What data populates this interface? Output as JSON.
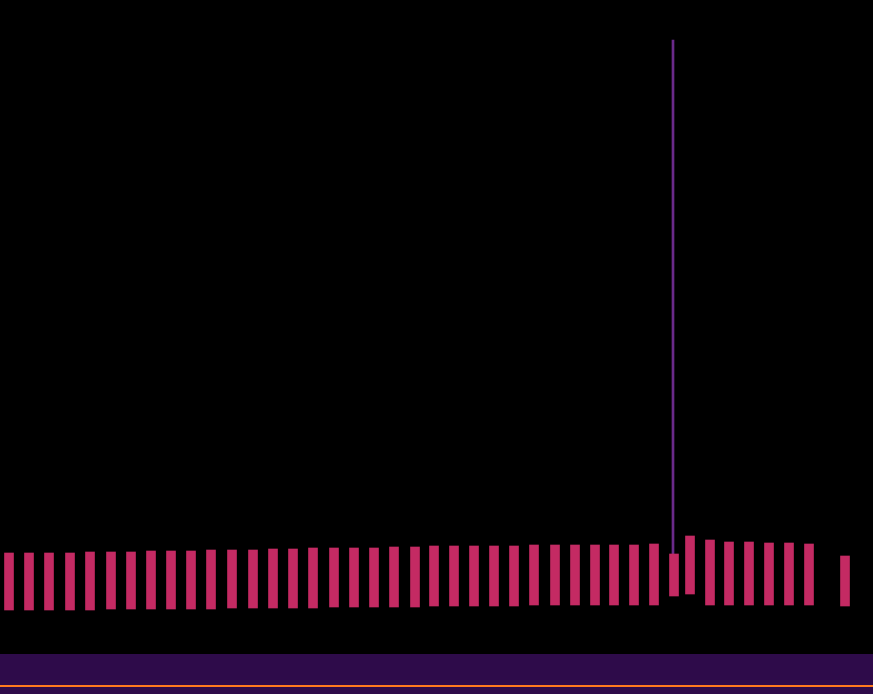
{
  "chart_data": {
    "type": "heatmap",
    "xlim": [
      0,
      873
    ],
    "ylim": [
      0,
      694
    ],
    "tick_labels": false,
    "grid": false,
    "series": [
      {
        "type": "area",
        "color": "#2e0b4a",
        "x": [
          0,
          873
        ],
        "values": [
          40,
          40
        ]
      },
      {
        "type": "line",
        "color": "#ff7a1e",
        "x": [
          0,
          873
        ],
        "values": [
          8,
          8
        ]
      },
      {
        "type": "bar",
        "color": "#c42a63",
        "x": [
          9,
          29,
          49,
          70,
          90,
          111,
          131,
          151,
          171,
          191,
          211,
          232,
          253,
          273,
          293,
          313,
          334,
          354,
          374,
          394,
          415,
          434,
          454,
          474,
          494,
          514,
          534,
          555,
          575,
          595,
          614,
          634,
          654,
          674,
          690,
          710,
          729,
          749,
          769,
          789,
          809,
          845
        ],
        "values": [
          [
            84,
            141
          ],
          [
            84,
            141
          ],
          [
            84,
            141
          ],
          [
            84,
            141
          ],
          [
            84,
            142
          ],
          [
            85,
            142
          ],
          [
            85,
            142
          ],
          [
            85,
            143
          ],
          [
            85,
            143
          ],
          [
            85,
            143
          ],
          [
            85,
            144
          ],
          [
            86,
            144
          ],
          [
            86,
            144
          ],
          [
            86,
            145
          ],
          [
            86,
            145
          ],
          [
            86,
            146
          ],
          [
            87,
            146
          ],
          [
            87,
            146
          ],
          [
            87,
            146
          ],
          [
            87,
            147
          ],
          [
            87,
            147
          ],
          [
            88,
            148
          ],
          [
            88,
            148
          ],
          [
            88,
            148
          ],
          [
            88,
            148
          ],
          [
            88,
            148
          ],
          [
            89,
            149
          ],
          [
            89,
            149
          ],
          [
            89,
            149
          ],
          [
            89,
            149
          ],
          [
            89,
            149
          ],
          [
            89,
            149
          ],
          [
            89,
            150
          ],
          [
            98,
            140
          ],
          [
            100,
            158
          ],
          [
            89,
            154
          ],
          [
            89,
            152
          ],
          [
            89,
            152
          ],
          [
            89,
            151
          ],
          [
            89,
            151
          ],
          [
            89,
            150
          ],
          [
            88,
            138
          ]
        ]
      },
      {
        "type": "bar",
        "color": "#6a2a8a",
        "x": [
          673
        ],
        "values": [
          [
            134,
            654
          ]
        ]
      }
    ]
  }
}
